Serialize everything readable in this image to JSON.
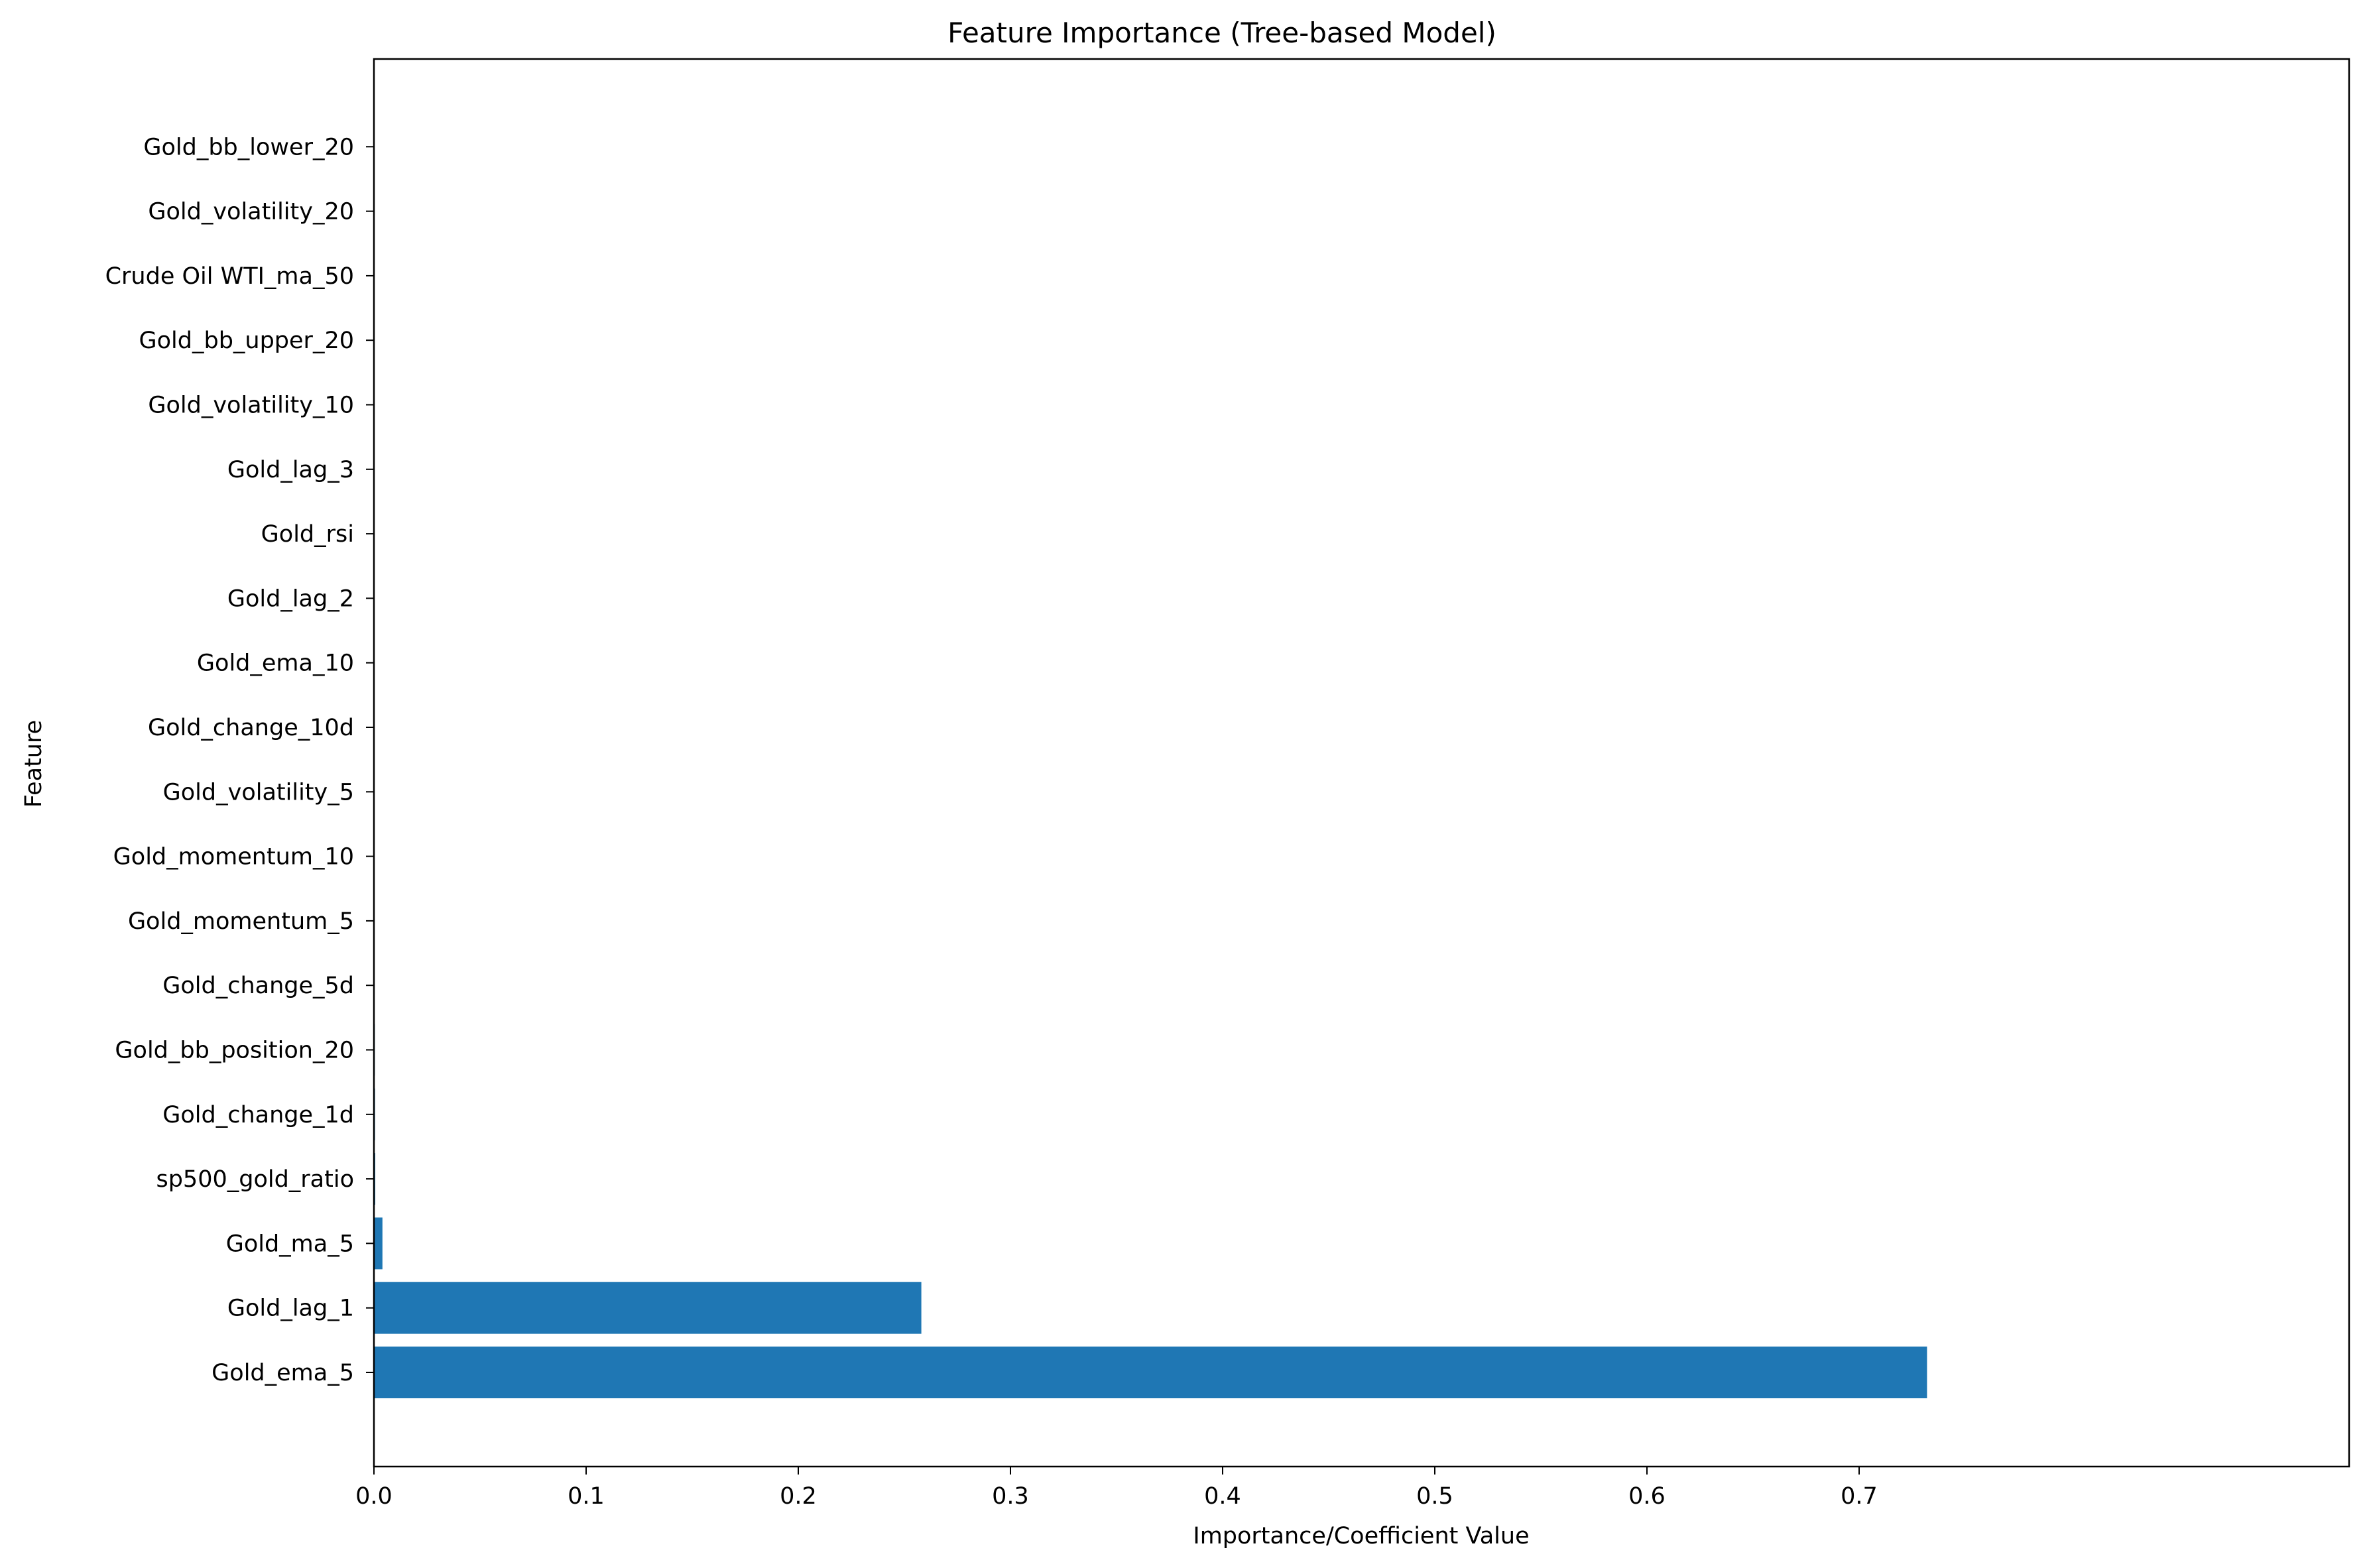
{
  "chart_data": {
    "type": "bar",
    "orientation": "horizontal",
    "title": "Feature Importance (Tree-based Model)",
    "xlabel": "Importance/Coefficient Value",
    "ylabel": "Feature",
    "xlim": [
      0,
      0.768
    ],
    "xticks": [
      "0.0",
      "0.1",
      "0.2",
      "0.3",
      "0.4",
      "0.5",
      "0.6",
      "0.7"
    ],
    "grid": false,
    "bar_color": "#1f77b4",
    "categories": [
      "Gold_ema_5",
      "Gold_lag_1",
      "Gold_ma_5",
      "sp500_gold_ratio",
      "Gold_change_1d",
      "Gold_bb_position_20",
      "Gold_change_5d",
      "Gold_momentum_5",
      "Gold_momentum_10",
      "Gold_volatility_5",
      "Gold_change_10d",
      "Gold_ema_10",
      "Gold_lag_2",
      "Gold_rsi",
      "Gold_lag_3",
      "Gold_volatility_10",
      "Gold_bb_upper_20",
      "Crude Oil WTI_ma_50",
      "Gold_volatility_20",
      "Gold_bb_lower_20"
    ],
    "values": [
      0.732,
      0.258,
      0.004,
      0.0006,
      0.0005,
      0.0004,
      0.0002,
      0.0001,
      0.0001,
      0.0001,
      0.0001,
      5e-05,
      5e-05,
      5e-05,
      5e-05,
      4e-05,
      3e-05,
      2e-05,
      1e-05,
      1e-05
    ]
  }
}
